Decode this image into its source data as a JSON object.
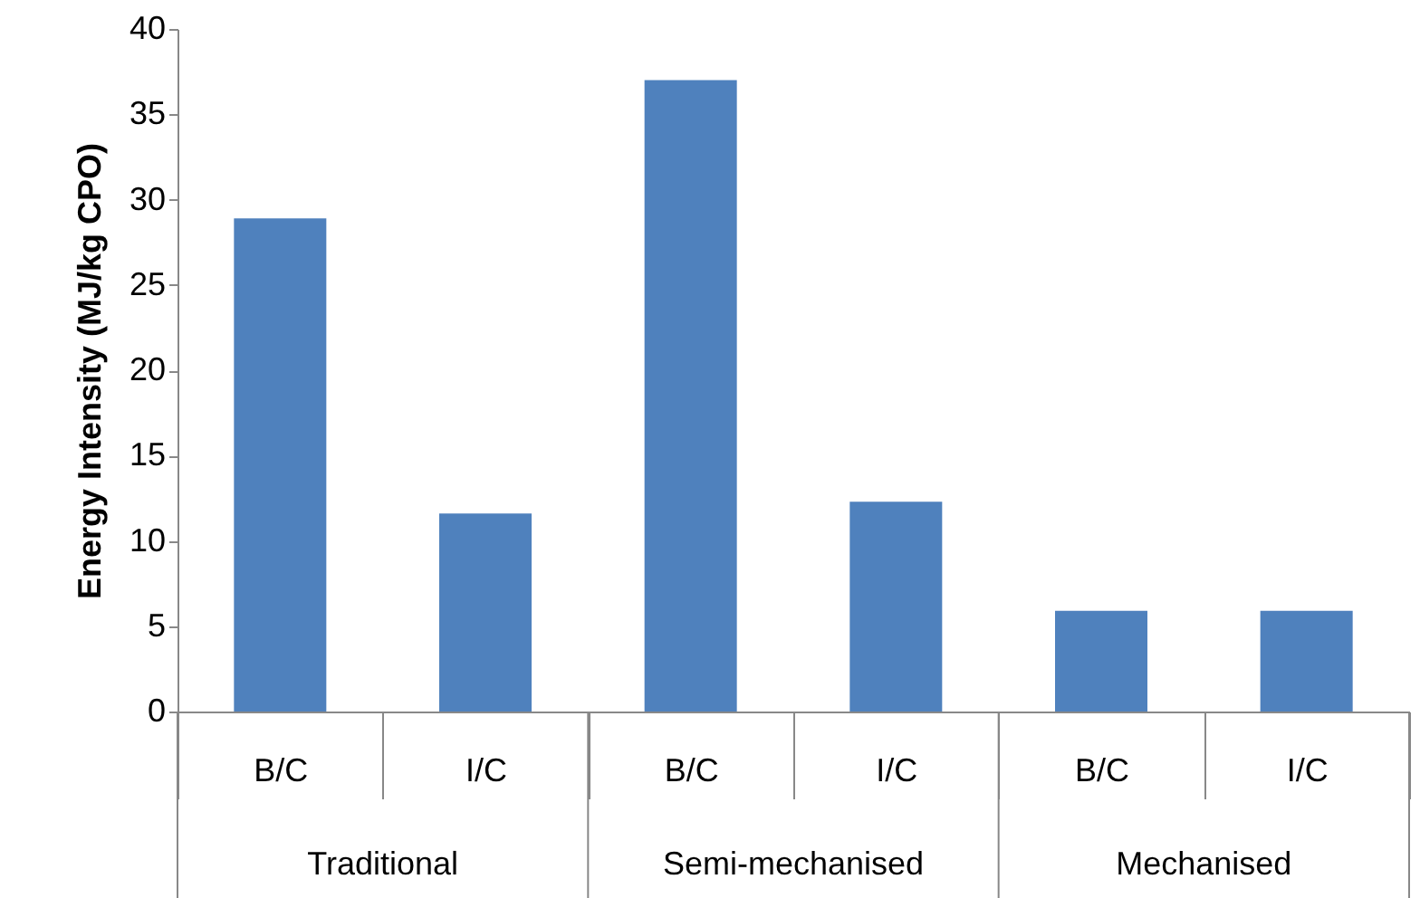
{
  "chart_data": {
    "type": "bar",
    "ylabel": "Energy Intensity (MJ/kg CPO)",
    "categories": [
      "B/C",
      "I/C",
      "B/C",
      "I/C",
      "B/C",
      "I/C"
    ],
    "values": [
      28.9,
      11.6,
      37.0,
      12.3,
      5.9,
      5.9
    ],
    "color": "#4f81bd",
    "ylim": [
      0,
      40
    ],
    "yticks": [
      0,
      5,
      10,
      15,
      20,
      25,
      30,
      35,
      40
    ],
    "annotations": [
      "Traditional",
      "Semi-mechanised",
      "Mechanised"
    ]
  }
}
